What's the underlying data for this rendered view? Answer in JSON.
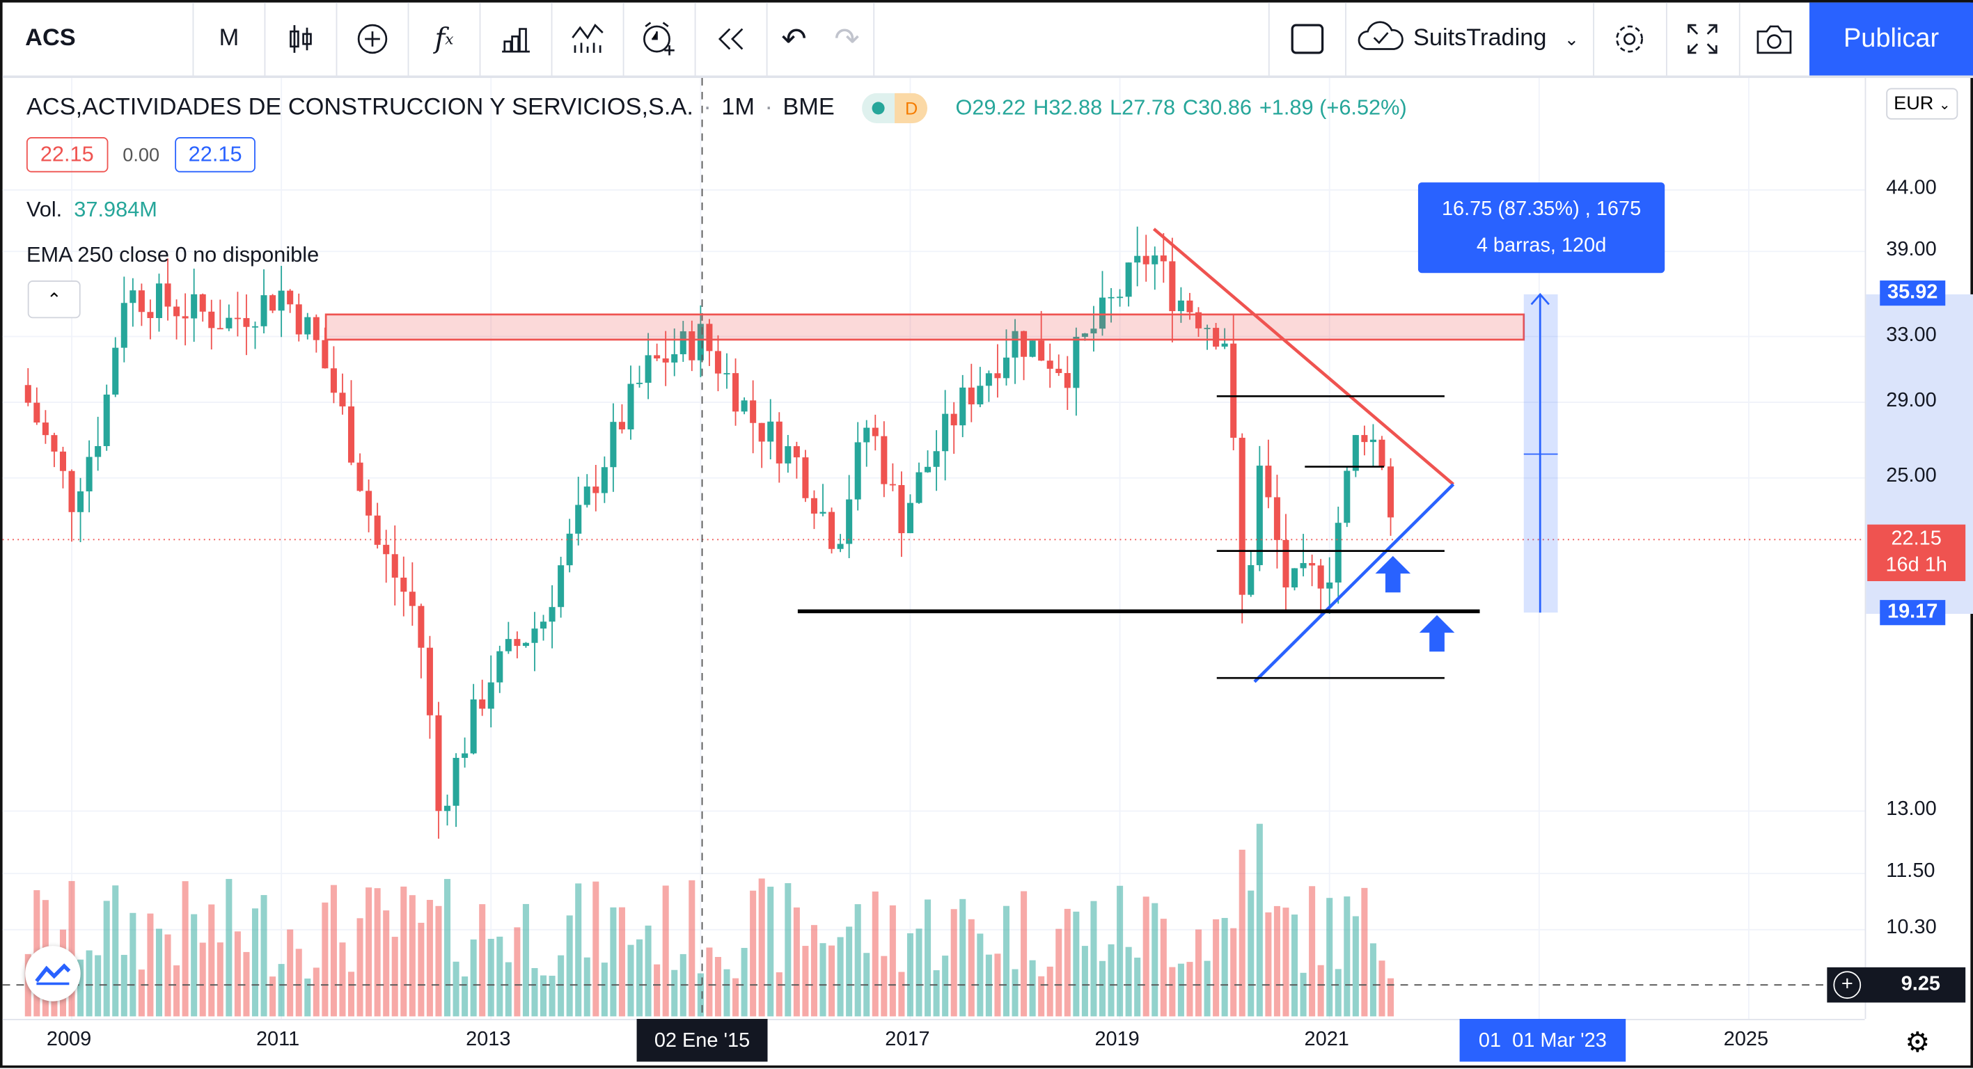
{
  "toolbar": {
    "symbol": "ACS",
    "interval": "M",
    "icons": [
      "candles-icon",
      "add-compare-icon",
      "indicators-icon",
      "financials-icon",
      "templates-icon",
      "alert-icon",
      "replay-icon",
      "undo-icon",
      "redo-icon"
    ],
    "layout_icon": "layout-square-icon",
    "layout_name": "SuitsTrading",
    "publish": "Publicar"
  },
  "legend": {
    "title": "ACS,ACTIVIDADES DE CONSTRUCCION Y SERVICIOS,S.A.",
    "interval": "1M",
    "exchange": "BME",
    "session_badge": "D",
    "open": "O29.22",
    "high": "H32.88",
    "low": "L27.78",
    "close": "C30.86",
    "change": "+1.89 (+6.52%)",
    "bid": "22.15",
    "spread": "0.00",
    "ask": "22.15",
    "vol_label": "Vol.",
    "vol_value": "37.984M",
    "ema": "EMA 250 close 0  no disponible"
  },
  "currency": "EUR",
  "measure": {
    "line1": "16.75 (87.35%) , 1675",
    "line2": "4 barras, 120d"
  },
  "price_axis": {
    "ticks": [
      "44.00",
      "39.00",
      "33.00",
      "29.00",
      "25.00",
      "13.00",
      "11.50",
      "10.30"
    ],
    "tick_values": [
      44,
      39,
      33,
      29,
      25,
      13,
      11.5,
      10.3
    ],
    "labels": {
      "top": "35.92",
      "last": "22.15",
      "countdown": "16d 1h",
      "bottom": "19.17",
      "cursor": "9.25"
    }
  },
  "time_axis": {
    "ticks": [
      "2009",
      "2011",
      "2013",
      "2017",
      "2019",
      "2021",
      "2025"
    ],
    "cursor": "02 Ene '15",
    "measure": "01  01 Mar '23"
  },
  "colors": {
    "up": "#26a69a",
    "down": "#ef5350",
    "accent": "#2962ff"
  },
  "chart_data": {
    "type": "candlestick",
    "scale": "log",
    "price_keypoints": [
      [
        2008.5,
        30
      ],
      [
        2009.0,
        24
      ],
      [
        2009.3,
        28
      ],
      [
        2009.5,
        36
      ],
      [
        2010,
        35
      ],
      [
        2010.5,
        34
      ],
      [
        2011,
        36
      ],
      [
        2011.3,
        33
      ],
      [
        2011.6,
        28
      ],
      [
        2011.9,
        22
      ],
      [
        2012.3,
        19
      ],
      [
        2012.5,
        13
      ],
      [
        2012.7,
        14.5
      ],
      [
        2013,
        17
      ],
      [
        2013.5,
        19
      ],
      [
        2014,
        25
      ],
      [
        2014.5,
        31
      ],
      [
        2015,
        33
      ],
      [
        2015.5,
        28
      ],
      [
        2015.9,
        26
      ],
      [
        2016.3,
        22
      ],
      [
        2016.6,
        28
      ],
      [
        2016.9,
        23
      ],
      [
        2017.5,
        29
      ],
      [
        2018,
        33
      ],
      [
        2018.5,
        31
      ],
      [
        2019,
        36
      ],
      [
        2019.3,
        39
      ],
      [
        2019.5,
        36
      ],
      [
        2020,
        33
      ],
      [
        2020.2,
        17
      ],
      [
        2020.3,
        26
      ],
      [
        2020.6,
        20
      ],
      [
        2021,
        21
      ],
      [
        2021.3,
        28
      ],
      [
        2021.5,
        26
      ],
      [
        2021.62,
        22.15
      ]
    ]
  }
}
